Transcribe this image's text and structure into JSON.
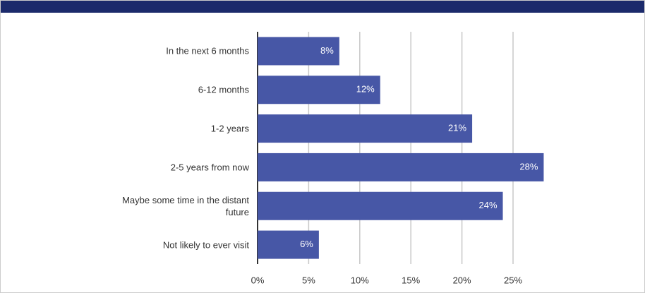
{
  "chart_data": {
    "type": "bar",
    "orientation": "horizontal",
    "categories": [
      "In the next 6 months",
      "6-12 months",
      "1-2 years",
      "2-5 years from now",
      "Maybe some time in the distant future",
      "Not likely to ever visit"
    ],
    "values": [
      8,
      12,
      21,
      28,
      24,
      6
    ],
    "value_labels": [
      "8%",
      "12%",
      "21%",
      "28%",
      "24%",
      "6%"
    ],
    "color": "#4757a6",
    "xlim": [
      0,
      25
    ],
    "xticks": [
      {
        "value": 0,
        "label": "0%"
      },
      {
        "value": 5,
        "label": "5%"
      },
      {
        "value": 10,
        "label": "10%"
      },
      {
        "value": 15,
        "label": "15%"
      },
      {
        "value": 20,
        "label": "20%"
      },
      {
        "value": 25,
        "label": "25%"
      }
    ],
    "grid": true
  }
}
